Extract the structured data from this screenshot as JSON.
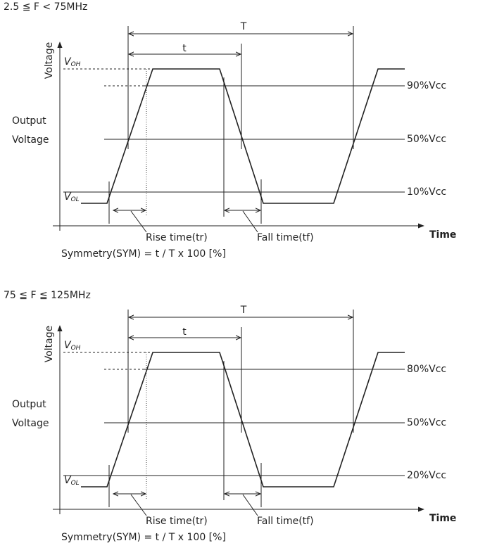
{
  "panels": [
    {
      "heading": "2.5 ≦ F < 75MHz",
      "period_label": "T",
      "width_label": "t",
      "axis_label": "Voltage",
      "voh": {
        "main": "V",
        "sub": "OH"
      },
      "vol": {
        "main": "V",
        "sub": "OL"
      },
      "output_label": [
        "Output",
        "Voltage"
      ],
      "levels": [
        "90%Vcc",
        "50%Vcc",
        "10%Vcc"
      ],
      "time_label": "Time",
      "rise_label": "Rise time(tr)",
      "fall_label": "Fall time(tf)",
      "formula": "Symmetry(SYM) = t / T x 100 [%]"
    },
    {
      "heading": "75 ≦ F ≦ 125MHz",
      "period_label": "T",
      "width_label": "t",
      "axis_label": "Voltage",
      "voh": {
        "main": "V",
        "sub": "OH"
      },
      "vol": {
        "main": "V",
        "sub": "OL"
      },
      "output_label": [
        "Output",
        "Voltage"
      ],
      "levels": [
        "80%Vcc",
        "50%Vcc",
        "20%Vcc"
      ],
      "time_label": "Time",
      "rise_label": "Rise time(tr)",
      "fall_label": "Fall time(tf)",
      "formula": "Symmetry(SYM) = t / T x 100 [%]"
    }
  ]
}
